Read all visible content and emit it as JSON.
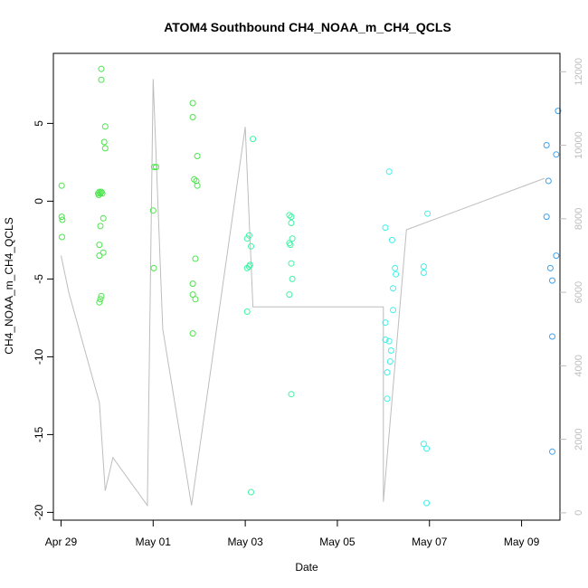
{
  "chart_data": {
    "type": "scatter",
    "title": "ATOM4 Southbound CH4_NOAA_m_CH4_QCLS",
    "xlabel": "Date",
    "ylabel": "CH4_NOAA_m_CH4_QCLS",
    "x_axis": {
      "type": "date",
      "range": [
        "2017-04-28T20:00",
        "2017-05-09T20:00"
      ],
      "ticks": [
        "2017-04-29",
        "2017-05-01",
        "2017-05-03",
        "2017-05-05",
        "2017-05-07",
        "2017-05-09"
      ],
      "tick_labels": [
        "Apr 29",
        "May 01",
        "May 03",
        "May 05",
        "May 07",
        "May 09"
      ]
    },
    "y_axis": {
      "range": [
        -20.5,
        9.5
      ],
      "ticks": [
        -20,
        -15,
        -10,
        -5,
        0,
        5
      ],
      "tick_labels": [
        "-20",
        "-15",
        "-10",
        "-5",
        "0",
        "5"
      ]
    },
    "y2_axis": {
      "label": "",
      "range": [
        -200,
        12500
      ],
      "ticks": [
        0,
        2000,
        4000,
        6000,
        8000,
        10000,
        12000
      ],
      "tick_labels": [
        "0",
        "2000",
        "4000",
        "6000",
        "8000",
        "10000",
        "12000"
      ],
      "color": "#bdbdbd"
    },
    "grid": false,
    "legend": "none",
    "point_colors": [
      "#4be54b",
      "#3ff4a4",
      "#3ff0e8",
      "#3fd6f2",
      "#3fb7f0",
      "#3fa2ec"
    ],
    "series": [
      {
        "kind": "points",
        "color": "#4be54b",
        "points": [
          [
            "2017-04-29T00:20",
            1.0
          ],
          [
            "2017-04-29T00:20",
            -1.0
          ],
          [
            "2017-04-29T00:40",
            -1.2
          ],
          [
            "2017-04-29T00:30",
            -2.3
          ],
          [
            "2017-04-29T19:20",
            0.5
          ],
          [
            "2017-04-29T19:40",
            0.4
          ],
          [
            "2017-04-29T20:00",
            0.6
          ],
          [
            "2017-04-29T20:30",
            0.5
          ],
          [
            "2017-04-29T21:00",
            0.6
          ],
          [
            "2017-04-29T21:30",
            0.5
          ],
          [
            "2017-04-29T21:00",
            8.5
          ],
          [
            "2017-04-29T21:00",
            7.8
          ],
          [
            "2017-04-29T23:00",
            4.8
          ],
          [
            "2017-04-29T22:30",
            3.8
          ],
          [
            "2017-04-29T23:00",
            3.4
          ],
          [
            "2017-04-29T22:00",
            -1.1
          ],
          [
            "2017-04-29T20:30",
            -1.6
          ],
          [
            "2017-04-29T20:00",
            -2.8
          ],
          [
            "2017-04-29T20:00",
            -3.5
          ],
          [
            "2017-04-29T22:00",
            -3.3
          ],
          [
            "2017-04-29T21:00",
            -6.1
          ],
          [
            "2017-04-29T20:30",
            -6.3
          ],
          [
            "2017-04-29T20:00",
            -6.5
          ],
          [
            "2017-05-01T00:30",
            2.2
          ],
          [
            "2017-05-01T01:30",
            2.2
          ],
          [
            "2017-05-01T00:00",
            -0.6
          ],
          [
            "2017-05-01T00:20",
            -4.3
          ],
          [
            "2017-05-01T20:40",
            6.3
          ],
          [
            "2017-05-01T20:40",
            5.4
          ],
          [
            "2017-05-01T23:00",
            2.9
          ],
          [
            "2017-05-01T21:20",
            1.4
          ],
          [
            "2017-05-01T22:30",
            1.3
          ],
          [
            "2017-05-01T23:00",
            1.0
          ],
          [
            "2017-05-01T22:00",
            -3.7
          ],
          [
            "2017-05-01T20:40",
            -5.3
          ],
          [
            "2017-05-01T20:40",
            -6.0
          ],
          [
            "2017-05-01T22:00",
            -6.3
          ],
          [
            "2017-05-01T20:40",
            -8.5
          ]
        ]
      },
      {
        "kind": "points",
        "color": "#3ff4a4",
        "points": [
          [
            "2017-05-03T04:00",
            4.0
          ],
          [
            "2017-05-03T01:00",
            -2.4
          ],
          [
            "2017-05-03T02:00",
            -2.2
          ],
          [
            "2017-05-03T03:00",
            -2.9
          ],
          [
            "2017-05-03T01:00",
            -4.3
          ],
          [
            "2017-05-03T02:00",
            -4.2
          ],
          [
            "2017-05-03T02:30",
            -4.1
          ],
          [
            "2017-05-03T01:00",
            -7.1
          ],
          [
            "2017-05-03T03:00",
            -18.7
          ],
          [
            "2017-05-03T23:00",
            -0.9
          ],
          [
            "2017-05-04T00:00",
            -1.0
          ],
          [
            "2017-05-04T00:00",
            -1.4
          ],
          [
            "2017-05-04T00:30",
            -2.4
          ],
          [
            "2017-05-03T23:00",
            -2.7
          ],
          [
            "2017-05-03T23:30",
            -2.8
          ],
          [
            "2017-05-04T00:00",
            -4.0
          ],
          [
            "2017-05-04T00:30",
            -5.0
          ],
          [
            "2017-05-03T23:00",
            -6.0
          ],
          [
            "2017-05-04T00:00",
            -12.4
          ]
        ]
      },
      {
        "kind": "points",
        "color": "#3ff0e8",
        "points": [
          [
            "2017-05-06T03:00",
            1.9
          ],
          [
            "2017-05-06T01:00",
            -1.7
          ],
          [
            "2017-05-06T04:30",
            -2.5
          ],
          [
            "2017-05-06T06:00",
            -4.3
          ],
          [
            "2017-05-06T06:30",
            -4.7
          ],
          [
            "2017-05-06T05:00",
            -5.6
          ],
          [
            "2017-05-06T05:00",
            -7.0
          ],
          [
            "2017-05-06T01:00",
            -7.8
          ],
          [
            "2017-05-06T01:00",
            -8.9
          ],
          [
            "2017-05-06T03:00",
            -9.0
          ],
          [
            "2017-05-06T04:00",
            -9.6
          ],
          [
            "2017-05-06T03:30",
            -10.3
          ],
          [
            "2017-05-06T02:00",
            -11.0
          ],
          [
            "2017-05-06T02:00",
            -12.7
          ],
          [
            "2017-05-06T23:00",
            -0.8
          ],
          [
            "2017-05-06T21:00",
            -4.2
          ],
          [
            "2017-05-06T21:00",
            -4.6
          ],
          [
            "2017-05-06T21:00",
            -15.6
          ],
          [
            "2017-05-06T22:30",
            -15.9
          ],
          [
            "2017-05-06T22:30",
            -19.4
          ]
        ]
      },
      {
        "kind": "points",
        "color": "#3fa2ec",
        "points": [
          [
            "2017-05-09T19:00",
            5.8
          ],
          [
            "2017-05-09T13:00",
            3.6
          ],
          [
            "2017-05-09T18:00",
            3.0
          ],
          [
            "2017-05-09T14:00",
            1.3
          ],
          [
            "2017-05-09T13:00",
            -1.0
          ],
          [
            "2017-05-09T18:00",
            -3.5
          ],
          [
            "2017-05-09T15:00",
            -4.3
          ],
          [
            "2017-05-09T16:00",
            -5.1
          ],
          [
            "2017-05-09T16:00",
            -8.7
          ],
          [
            "2017-05-09T16:00",
            -16.1
          ]
        ]
      },
      {
        "kind": "line",
        "axis": "y2",
        "color": "#bdbdbd",
        "points": [
          [
            "2017-04-29T00:00",
            7000
          ],
          [
            "2017-04-29T04:00",
            6000
          ],
          [
            "2017-04-29T12:00",
            4500
          ],
          [
            "2017-04-29T20:00",
            3000
          ],
          [
            "2017-04-29T23:00",
            600
          ],
          [
            "2017-04-30T03:00",
            1500
          ],
          [
            "2017-04-30T21:00",
            200
          ],
          [
            "2017-05-01T00:00",
            11800
          ],
          [
            "2017-05-01T05:00",
            5000
          ],
          [
            "2017-05-01T20:00",
            200
          ],
          [
            "2017-05-03T00:00",
            10500
          ],
          [
            "2017-05-03T04:00",
            5600
          ],
          [
            "2017-05-03T20:00",
            5600
          ],
          [
            "2017-05-03T22:00",
            5600
          ],
          [
            "2017-05-05T02:00",
            5600
          ],
          [
            "2017-05-06T00:00",
            5600
          ],
          [
            "2017-05-06T00:00",
            300
          ],
          [
            "2017-05-06T12:00",
            7700
          ],
          [
            "2017-05-09T12:00",
            9100
          ]
        ]
      }
    ]
  }
}
